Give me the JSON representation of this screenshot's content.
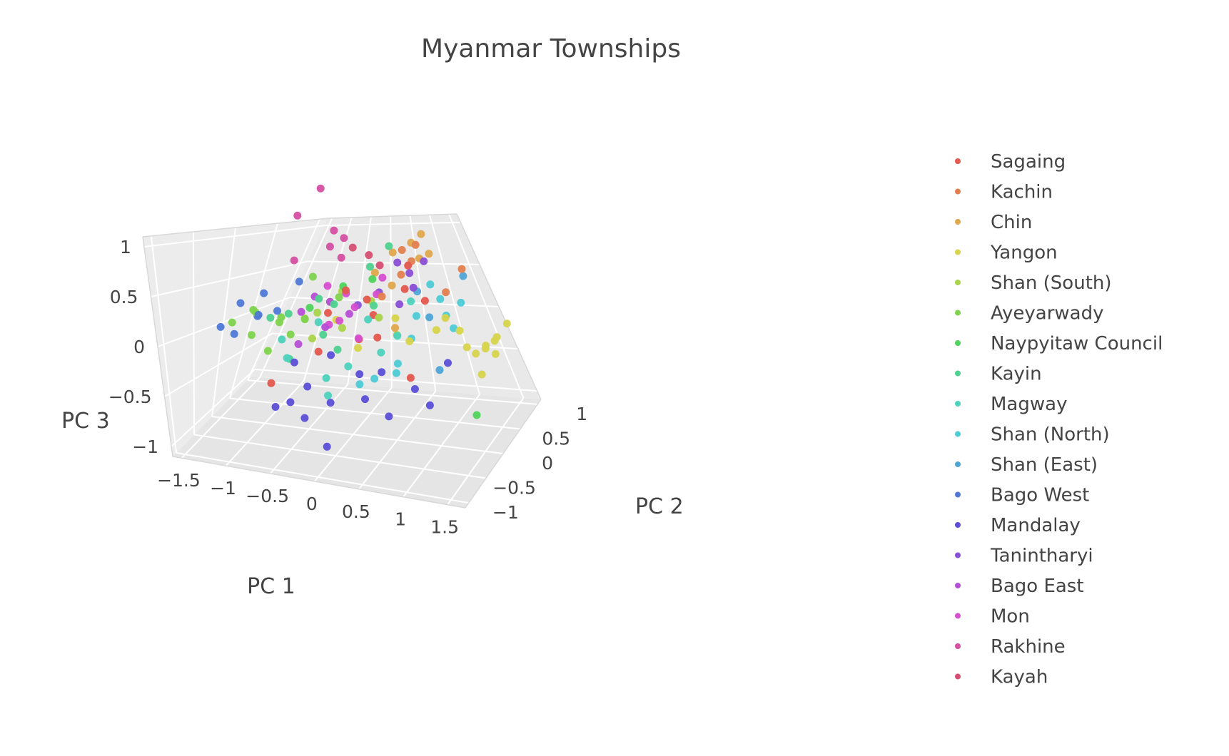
{
  "chart_data": {
    "type": "scatter3d",
    "title": "Myanmar Townships",
    "axes": {
      "x": {
        "label": "PC 1",
        "range": [
          -1.6,
          1.7
        ],
        "ticks": [
          -1.5,
          -1,
          -0.5,
          0,
          0.5,
          1,
          1.5
        ],
        "tick_labels": [
          "−1.5",
          "−1",
          "−0.5",
          "0",
          "0.5",
          "1",
          "1.5"
        ]
      },
      "y": {
        "label": "PC 2",
        "range": [
          -1.1,
          1.1
        ],
        "ticks": [
          -1,
          -0.5,
          0,
          0.5,
          1
        ],
        "tick_labels": [
          "−1",
          "−0.5",
          "0",
          "0.5",
          "1"
        ]
      },
      "z": {
        "label": "PC 3",
        "range": [
          -1.1,
          1.1
        ],
        "ticks": [
          -1,
          -0.5,
          0,
          0.5,
          1
        ],
        "tick_labels": [
          "−1",
          "−0.5",
          "0",
          "0.5",
          "1"
        ]
      }
    },
    "grid": true,
    "legend_position": "right",
    "series": [
      {
        "name": "Sagaing",
        "color": "#e4584f",
        "points": [
          [
            0.0,
            -0.6,
            0.5
          ],
          [
            0.2,
            -0.5,
            0.4
          ],
          [
            -0.5,
            0.1,
            -0.3
          ],
          [
            0.6,
            0.1,
            -0.5
          ],
          [
            -0.3,
            -0.2,
            0.2
          ],
          [
            0.4,
            0.6,
            0.3
          ],
          [
            0.1,
            0.2,
            0.1
          ],
          [
            -0.8,
            -0.4,
            -0.5
          ],
          [
            0.3,
            -0.3,
            0.0
          ],
          [
            0.5,
            0.4,
            0.6
          ],
          [
            -0.1,
            0.3,
            -0.2
          ],
          [
            0.7,
            0.5,
            0.2
          ]
        ]
      },
      {
        "name": "Kachin",
        "color": "#e37f4e",
        "points": [
          [
            0.5,
            0.7,
            0.6
          ],
          [
            0.3,
            0.9,
            0.7
          ],
          [
            1.0,
            0.5,
            0.3
          ],
          [
            0.2,
            0.2,
            0.3
          ],
          [
            0.6,
            0.6,
            0.8
          ],
          [
            0.4,
            0.4,
            0.5
          ],
          [
            1.3,
            0.8,
            0.5
          ]
        ]
      },
      {
        "name": "Chin",
        "color": "#e0a64c",
        "points": [
          [
            0.2,
            0.7,
            0.7
          ],
          [
            0.5,
            0.8,
            0.8
          ],
          [
            0.7,
            0.8,
            0.9
          ],
          [
            0.3,
            0.3,
            0.4
          ],
          [
            0.6,
            0.9,
            0.6
          ],
          [
            0.0,
            0.5,
            0.5
          ],
          [
            0.4,
            0.1,
            0.0
          ],
          [
            0.8,
            0.6,
            0.7
          ]
        ]
      },
      {
        "name": "Yangon",
        "color": "#d8d44c",
        "points": [
          [
            1.5,
            -0.4,
            0.0
          ],
          [
            1.6,
            -0.5,
            0.1
          ],
          [
            1.4,
            -0.3,
            -0.1
          ],
          [
            1.6,
            -0.2,
            0.0
          ],
          [
            1.5,
            -0.6,
            -0.2
          ],
          [
            1.7,
            -0.4,
            0.2
          ],
          [
            1.3,
            -0.5,
            0.0
          ],
          [
            1.2,
            -0.3,
            0.1
          ],
          [
            1.5,
            -0.1,
            -0.1
          ],
          [
            1.6,
            -0.7,
            0.0
          ],
          [
            0.9,
            0.1,
            0.0
          ],
          [
            1.0,
            0.2,
            0.1
          ],
          [
            0.6,
            0.0,
            -0.1
          ],
          [
            0.4,
            0.1,
            0.1
          ],
          [
            -0.4,
            0.3,
            0.0
          ],
          [
            0.0,
            0.0,
            -0.2
          ]
        ]
      },
      {
        "name": "Shan (South)",
        "color": "#a9d44c",
        "points": [
          [
            -0.8,
            0.3,
            0.0
          ],
          [
            -0.6,
            0.2,
            0.1
          ],
          [
            -0.4,
            0.4,
            0.3
          ],
          [
            -0.2,
            0.0,
            0.0
          ],
          [
            0.0,
            0.4,
            0.2
          ],
          [
            0.2,
            0.1,
            0.1
          ],
          [
            -0.5,
            -0.1,
            -0.1
          ],
          [
            0.4,
            0.2,
            -0.1
          ]
        ]
      },
      {
        "name": "Ayeyarwady",
        "color": "#7ed34e",
        "points": [
          [
            -1.5,
            0.0,
            0.0
          ],
          [
            -1.4,
            0.2,
            0.1
          ],
          [
            -1.2,
            -0.1,
            -0.1
          ],
          [
            -1.0,
            0.1,
            0.0
          ],
          [
            -0.9,
            -0.3,
            -0.2
          ],
          [
            -0.7,
            0.2,
            0.5
          ],
          [
            -0.6,
            -0.1,
            0.1
          ],
          [
            -1.3,
            0.1,
            0.1
          ],
          [
            -0.8,
            0.0,
            -0.1
          ],
          [
            -0.5,
            0.3,
            0.2
          ],
          [
            -0.3,
            0.1,
            0.3
          ],
          [
            -1.1,
            0.3,
            0.0
          ]
        ]
      },
      {
        "name": "Naypyitaw  Council",
        "color": "#4fd35a",
        "points": [
          [
            1.3,
            0.3,
            -0.9
          ],
          [
            -0.3,
            0.2,
            0.4
          ],
          [
            -0.6,
            0.0,
            0.2
          ],
          [
            0.1,
            0.1,
            0.5
          ]
        ]
      },
      {
        "name": "Kayin",
        "color": "#4ed28f",
        "points": [
          [
            -0.7,
            -0.2,
            -0.3
          ],
          [
            -0.5,
            0.0,
            0.3
          ],
          [
            -0.9,
            0.1,
            0.1
          ],
          [
            -0.3,
            -0.3,
            0.0
          ],
          [
            0.0,
            0.3,
            0.6
          ],
          [
            0.2,
            0.5,
            0.8
          ],
          [
            -0.4,
            0.2,
            0.2
          ],
          [
            -1.0,
            -0.1,
            0.1
          ],
          [
            -0.2,
            -0.1,
            -0.2
          ],
          [
            0.1,
            0.2,
            0.2
          ]
        ]
      },
      {
        "name": "Magway",
        "color": "#4dd2bd",
        "points": [
          [
            -0.6,
            -0.5,
            -0.2
          ],
          [
            -0.2,
            -0.4,
            -0.4
          ],
          [
            0.0,
            -0.3,
            -0.3
          ],
          [
            0.3,
            -0.1,
            -0.2
          ],
          [
            -0.4,
            -0.2,
            0.1
          ],
          [
            0.5,
            -0.2,
            0.0
          ],
          [
            -0.8,
            -0.2,
            -0.1
          ],
          [
            0.1,
            0.0,
            0.1
          ],
          [
            0.6,
            0.0,
            0.3
          ],
          [
            -0.1,
            -0.6,
            -0.5
          ]
        ]
      },
      {
        "name": "Shan (North)",
        "color": "#4ccbd6",
        "points": [
          [
            0.8,
            0.4,
            0.4
          ],
          [
            1.0,
            0.3,
            0.1
          ],
          [
            0.9,
            0.6,
            0.2
          ],
          [
            0.6,
            0.1,
            -0.1
          ],
          [
            0.3,
            -0.3,
            -0.4
          ],
          [
            0.5,
            -0.1,
            -0.3
          ],
          [
            1.1,
            0.2,
            0.0
          ],
          [
            0.7,
            -0.2,
            0.2
          ],
          [
            0.4,
            0.2,
            -0.5
          ],
          [
            0.2,
            -0.5,
            -0.4
          ],
          [
            1.2,
            0.0,
            0.3
          ]
        ]
      },
      {
        "name": "Shan (East)",
        "color": "#4fa5d6",
        "points": [
          [
            1.3,
            0.9,
            0.4
          ],
          [
            0.8,
            0.2,
            0.1
          ],
          [
            1.0,
            -0.2,
            -0.3
          ],
          [
            0.6,
            0.5,
            0.3
          ]
        ]
      },
      {
        "name": "Bago West",
        "color": "#5079d6",
        "points": [
          [
            -1.5,
            0.1,
            0.2
          ],
          [
            -1.4,
            -0.1,
            -0.1
          ],
          [
            -1.3,
            0.2,
            0.3
          ],
          [
            -1.2,
            0.0,
            0.1
          ],
          [
            -1.1,
            0.2,
            0.1
          ],
          [
            -1.0,
            0.4,
            0.4
          ],
          [
            -1.4,
            0.3,
            0.0
          ],
          [
            -1.5,
            -0.2,
            0.0
          ]
        ]
      },
      {
        "name": "Mandalay",
        "color": "#5b4fd7",
        "points": [
          [
            -0.5,
            -0.6,
            -0.6
          ],
          [
            -0.3,
            -0.7,
            -0.7
          ],
          [
            -0.4,
            -0.4,
            -0.5
          ],
          [
            -0.1,
            -0.5,
            -0.6
          ],
          [
            0.1,
            -0.2,
            -0.4
          ],
          [
            0.3,
            -0.6,
            -0.5
          ],
          [
            0.6,
            -0.7,
            -0.6
          ],
          [
            0.8,
            -0.5,
            -0.4
          ],
          [
            1.0,
            -0.6,
            -0.5
          ],
          [
            1.1,
            -0.3,
            -0.2
          ],
          [
            -0.6,
            -0.3,
            -0.3
          ],
          [
            0.0,
            -0.8,
            -0.9
          ],
          [
            -0.2,
            -0.3,
            -0.2
          ],
          [
            0.4,
            -0.4,
            -0.3
          ],
          [
            -0.7,
            -0.5,
            -0.7
          ]
        ]
      },
      {
        "name": "Tanintharyi",
        "color": "#8a4fd6",
        "points": [
          [
            0.3,
            0.6,
            0.6
          ],
          [
            0.5,
            0.5,
            0.5
          ],
          [
            0.1,
            0.4,
            0.3
          ],
          [
            0.7,
            0.7,
            0.6
          ],
          [
            -0.1,
            0.2,
            0.2
          ],
          [
            0.4,
            0.3,
            0.2
          ],
          [
            0.6,
            0.2,
            0.4
          ]
        ]
      },
      {
        "name": "Bago East",
        "color": "#b74fd6",
        "points": [
          [
            -0.8,
            0.2,
            0.1
          ],
          [
            -0.6,
            0.1,
            0.3
          ],
          [
            -0.4,
            0.0,
            0.0
          ],
          [
            -0.2,
            0.2,
            0.1
          ],
          [
            -0.7,
            0.0,
            -0.2
          ],
          [
            -0.5,
            0.3,
            0.2
          ]
        ]
      },
      {
        "name": "Mon",
        "color": "#d64fd1",
        "points": [
          [
            -0.5,
            0.2,
            0.4
          ],
          [
            -0.3,
            0.3,
            0.3
          ],
          [
            -0.1,
            0.1,
            0.2
          ],
          [
            0.1,
            0.3,
            0.3
          ],
          [
            -0.4,
            0.1,
            0.0
          ],
          [
            0.0,
            0.0,
            -0.1
          ],
          [
            0.2,
            0.2,
            0.5
          ],
          [
            -0.2,
            -0.1,
            0.1
          ]
        ]
      },
      {
        "name": "Rakhine",
        "color": "#d64fa3",
        "points": [
          [
            -1.0,
            0.2,
            1.2
          ],
          [
            -0.8,
            0.3,
            1.5
          ],
          [
            -0.6,
            0.4,
            1.0
          ],
          [
            -0.9,
            0.1,
            0.7
          ],
          [
            -0.5,
            0.5,
            0.9
          ],
          [
            -0.4,
            0.3,
            0.7
          ],
          [
            -0.7,
            0.5,
            0.8
          ]
        ]
      },
      {
        "name": "Kayah",
        "color": "#d64f72",
        "points": [
          [
            -0.3,
            0.4,
            0.8
          ],
          [
            -0.1,
            0.5,
            0.7
          ],
          [
            0.1,
            0.4,
            0.6
          ]
        ]
      }
    ]
  }
}
